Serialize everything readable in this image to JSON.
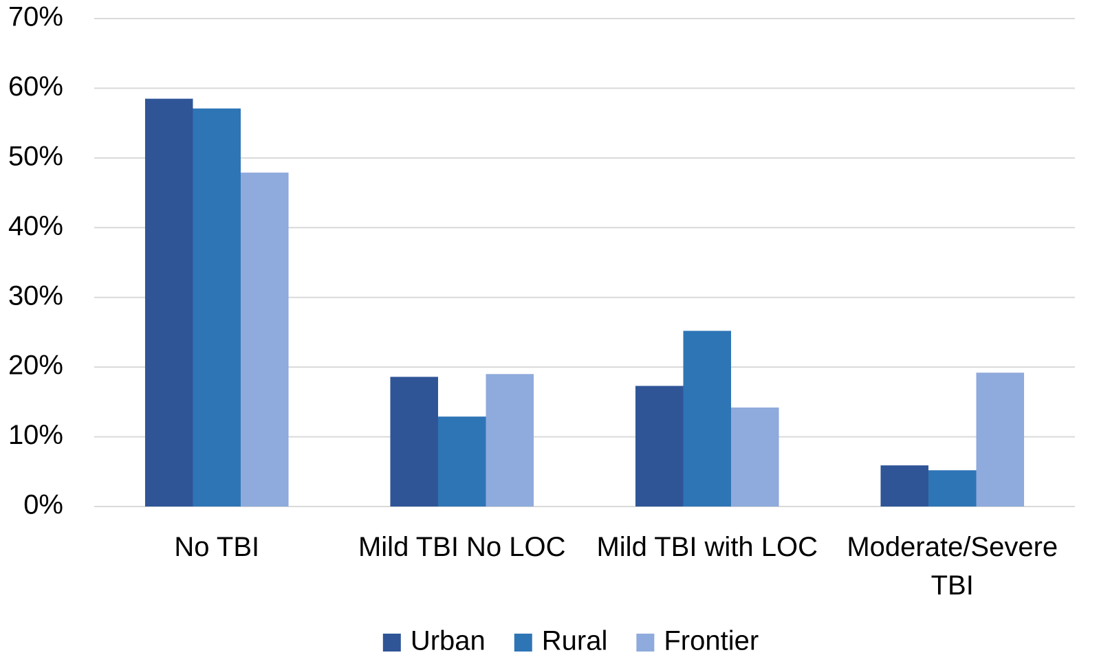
{
  "chart_data": {
    "type": "bar",
    "categories": [
      "No TBI",
      "Mild TBI No LOC",
      "Mild TBI with LOC",
      "Moderate/Severe TBI"
    ],
    "series": [
      {
        "name": "Urban",
        "color": "#2f5597",
        "values": [
          58.5,
          18.6,
          17.3,
          5.9
        ]
      },
      {
        "name": "Rural",
        "color": "#2e75b6",
        "values": [
          57.1,
          12.9,
          25.2,
          5.2
        ]
      },
      {
        "name": "Frontier",
        "color": "#8faadc",
        "values": [
          47.9,
          19.0,
          14.2,
          19.2
        ]
      }
    ],
    "ylim": [
      0,
      70
    ],
    "yticks": [
      {
        "value": 0,
        "label": "0%"
      },
      {
        "value": 10,
        "label": "10%"
      },
      {
        "value": 20,
        "label": "20%"
      },
      {
        "value": 30,
        "label": "30%"
      },
      {
        "value": 40,
        "label": "40%"
      },
      {
        "value": 50,
        "label": "50%"
      },
      {
        "value": 60,
        "label": "60%"
      },
      {
        "value": 70,
        "label": "70%"
      }
    ],
    "grid": true,
    "legend": "bottom"
  }
}
